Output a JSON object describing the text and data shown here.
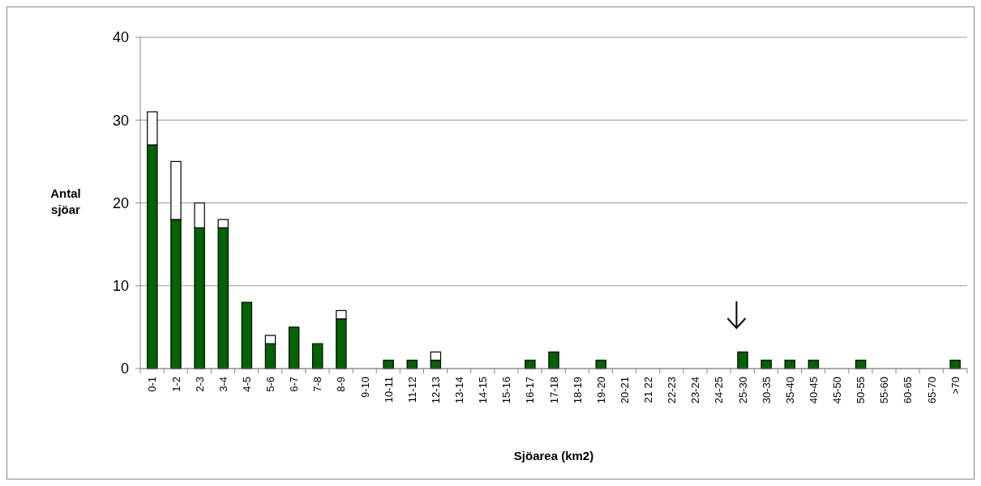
{
  "chart_data": {
    "type": "bar",
    "stacked": true,
    "xlabel": "Sjöarea (km2)",
    "ylabel": "Antal sjöar",
    "categories": [
      "0-1",
      "1-2",
      "2-3",
      "3-4",
      "4-5",
      "5-6",
      "6-7",
      "7-8",
      "8-9",
      "9-10",
      "10-11",
      "11-12",
      "12-13",
      "13-14",
      "14-15",
      "15-16",
      "16-17",
      "17-18",
      "18-19",
      "19-20",
      "20-21",
      "21 22",
      "22-23",
      "23-24",
      "24-25",
      "25-30",
      "30-35",
      "35-40",
      "40-45",
      "45-50",
      "50-55",
      "55-60",
      "60-65",
      "65-70",
      ">70"
    ],
    "series": [
      {
        "color": "#006400",
        "values": [
          27,
          18,
          17,
          17,
          8,
          3,
          5,
          3,
          6,
          0,
          1,
          1,
          1,
          0,
          0,
          0,
          1,
          2,
          0,
          1,
          0,
          0,
          0,
          0,
          0,
          2,
          1,
          1,
          1,
          0,
          1,
          0,
          0,
          0,
          1
        ]
      },
      {
        "color": "#ffffff",
        "values": [
          4,
          7,
          3,
          1,
          0,
          1,
          0,
          0,
          1,
          0,
          0,
          0,
          1,
          0,
          0,
          0,
          0,
          0,
          0,
          0,
          0,
          0,
          0,
          0,
          0,
          0,
          0,
          0,
          0,
          0,
          0,
          0,
          0,
          0,
          0
        ]
      }
    ],
    "ylim": [
      0,
      40
    ],
    "yticks": [
      0,
      10,
      20,
      30,
      40
    ],
    "grid": "y"
  }
}
